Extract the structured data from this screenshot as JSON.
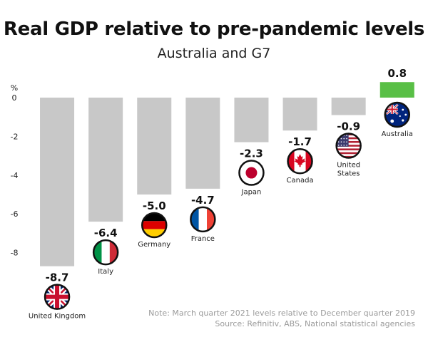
{
  "chart_data": {
    "type": "bar",
    "title": "Real GDP relative to pre-pandemic levels",
    "subtitle": "Australia and G7",
    "ylabel": "%",
    "ylim": [
      -10,
      1
    ],
    "yticks": [
      "0",
      "-2",
      "-4",
      "-6",
      "-8"
    ],
    "yticks_values": [
      0,
      -2,
      -4,
      -6,
      -8
    ],
    "grid": false,
    "legend": "none",
    "categories": [
      "United Kingdom",
      "Italy",
      "Germany",
      "France",
      "Japan",
      "Canada",
      "United States",
      "Australia"
    ],
    "category_labels": [
      [
        "United Kingdom"
      ],
      [
        "Italy"
      ],
      [
        "Germany"
      ],
      [
        "France"
      ],
      [
        "Japan"
      ],
      [
        "Canada"
      ],
      [
        "United",
        "States"
      ],
      [
        "Australia"
      ]
    ],
    "values": [
      -8.7,
      -6.4,
      -5.0,
      -4.7,
      -2.3,
      -1.7,
      -0.9,
      0.8
    ],
    "value_labels": [
      "-8.7",
      "-6.4",
      "-5.0",
      "-4.7",
      "-2.3",
      "-1.7",
      "-0.9",
      "0.8"
    ],
    "flag_icons": [
      "uk-flag-icon",
      "italy-flag-icon",
      "germany-flag-icon",
      "france-flag-icon",
      "japan-flag-icon",
      "canada-flag-icon",
      "us-flag-icon",
      "australia-flag-icon"
    ],
    "colors": {
      "negative": "#c8c8c8",
      "positive": "#59bf46",
      "axis_text": "#222222"
    }
  },
  "notes": {
    "line1": "Note: March quarter 2021 levels relative to December quarter 2019",
    "line2": "Source: Refinitiv, ABS, National statistical agencies"
  }
}
